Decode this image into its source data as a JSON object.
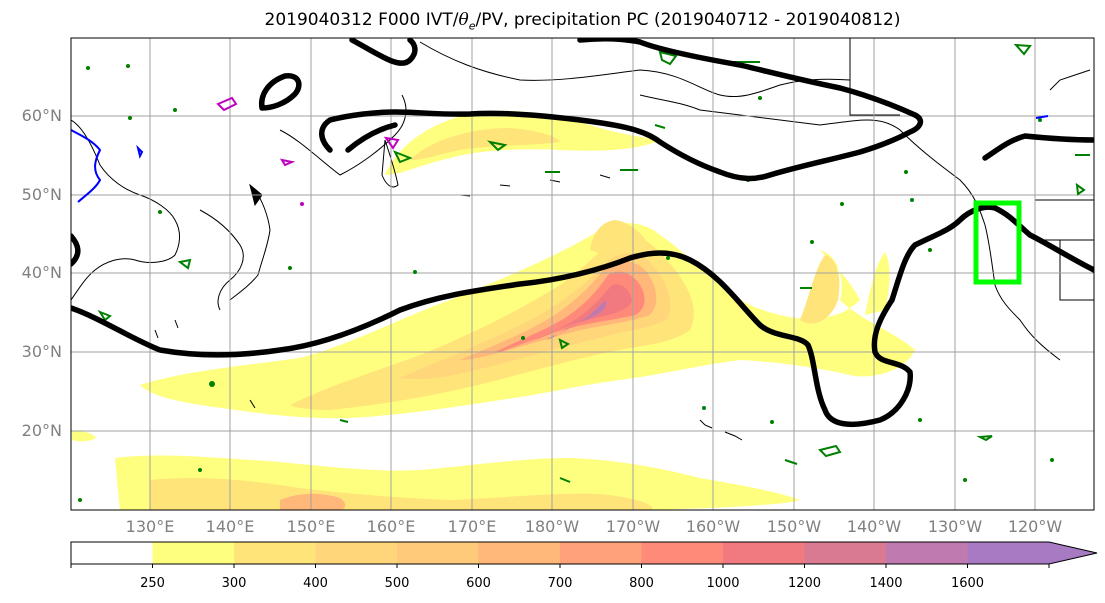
{
  "figure": {
    "title_prefix": "2019040312 F000 IVT/",
    "title_theta": "θ",
    "title_theta_sub": "e",
    "title_suffix": "/PV, precipitation PC (2019040712 - 2019040812)"
  },
  "map": {
    "lat_labels": [
      {
        "lat": 60,
        "text": "60°N"
      },
      {
        "lat": 50,
        "text": "50°N"
      },
      {
        "lat": 40,
        "text": "40°N"
      },
      {
        "lat": 30,
        "text": "30°N"
      },
      {
        "lat": 20,
        "text": "20°N"
      }
    ],
    "lon_labels": [
      {
        "lon": 130,
        "text": "130°E"
      },
      {
        "lon": 140,
        "text": "140°E"
      },
      {
        "lon": 150,
        "text": "150°E"
      },
      {
        "lon": 160,
        "text": "160°E"
      },
      {
        "lon": 170,
        "text": "170°E"
      },
      {
        "lon": 180,
        "text": "180°W"
      },
      {
        "lon": 190,
        "text": "170°W"
      },
      {
        "lon": 200,
        "text": "160°W"
      },
      {
        "lon": 210,
        "text": "150°W"
      },
      {
        "lon": 220,
        "text": "140°W"
      },
      {
        "lon": 230,
        "text": "130°W"
      },
      {
        "lon": 240,
        "text": "120°W"
      }
    ],
    "lon_range": [
      120,
      247
    ],
    "lat_range": [
      10,
      70
    ],
    "gridlines": true,
    "target_box": {
      "lon_min": 235,
      "lon_max": 240.5,
      "lat_min": 39,
      "lat_max": 49,
      "color": "#00ff00"
    }
  },
  "colorbar": {
    "levels": [
      0,
      250,
      300,
      400,
      500,
      600,
      700,
      800,
      1000,
      1200,
      1400,
      1600
    ],
    "tick_labels": [
      "250",
      "300",
      "400",
      "500",
      "600",
      "700",
      "800",
      "1000",
      "1200",
      "1400",
      "1600"
    ],
    "colors": [
      "#ffffff",
      "#ffff7f",
      "#ffe47a",
      "#ffd67a",
      "#ffca7a",
      "#ffb77a",
      "#ffa17a",
      "#ff8a7a",
      "#f07a80",
      "#d97a90",
      "#bf7ab0",
      "#a97ac4"
    ],
    "extend": "max"
  }
}
